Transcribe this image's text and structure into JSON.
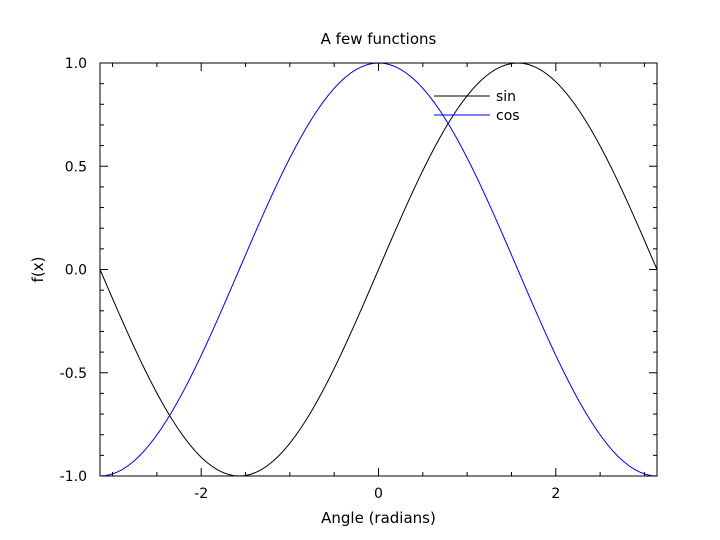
{
  "chart_data": {
    "type": "line",
    "title": "A few functions",
    "xlabel": "Angle (radians)",
    "ylabel": "f(x)",
    "xlim": [
      -3.14159,
      3.14159
    ],
    "ylim": [
      -1.0,
      1.0
    ],
    "x_major_ticks": [
      -2,
      0,
      2
    ],
    "x_tick_labels": [
      "-2",
      "0",
      "2"
    ],
    "x_minor_step": 0.5,
    "y_major_ticks": [
      -1.0,
      -0.5,
      0.0,
      0.5,
      1.0
    ],
    "y_tick_labels": [
      "-1.0",
      "-0.5",
      "0.0",
      "0.5",
      "1.0"
    ],
    "y_minor_step": 0.1,
    "grid": false,
    "legend_position": "top-right",
    "series": [
      {
        "name": "sin",
        "function": "sin(x)",
        "color": "#000000",
        "x_range": [
          -3.14159,
          3.14159
        ],
        "samples": 100
      },
      {
        "name": "cos",
        "function": "cos(x)",
        "color": "#0000ff",
        "x_range": [
          -3.14159,
          3.14159
        ],
        "samples": 100
      }
    ]
  }
}
